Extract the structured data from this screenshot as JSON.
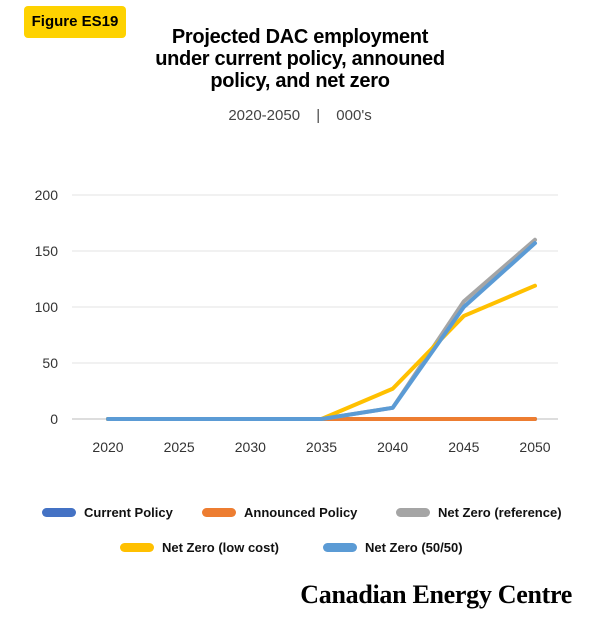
{
  "badge": "Figure ES19",
  "title_lines": [
    "Projected DAC employment",
    "under current policy, announed",
    "policy, and net zero"
  ],
  "subtitle": {
    "years": "2020-2050",
    "sep": "|",
    "units": "000's"
  },
  "footer": "Canadian Energy Centre",
  "chart_data": {
    "type": "line",
    "x": [
      "2020",
      "2025",
      "2030",
      "2035",
      "2040",
      "2045",
      "2050"
    ],
    "ylim": [
      0,
      200
    ],
    "yticks": [
      "0",
      "50",
      "100",
      "150",
      "200"
    ],
    "grid": true,
    "legend_position": "bottom",
    "series": [
      {
        "name": "Current Policy",
        "color": "#4472c4",
        "values": [
          0,
          0,
          0,
          0,
          0,
          0,
          0
        ]
      },
      {
        "name": "Announced Policy",
        "color": "#ed7d31",
        "values": [
          0,
          0,
          0,
          0,
          0,
          0,
          0
        ]
      },
      {
        "name": "Net Zero (reference)",
        "color": "#a5a5a5",
        "values": [
          0,
          0,
          0,
          0,
          10,
          105,
          160
        ]
      },
      {
        "name": "Net Zero (low cost)",
        "color": "#ffc000",
        "values": [
          0,
          0,
          0,
          0,
          27,
          92,
          119
        ]
      },
      {
        "name": "Net Zero (50/50)",
        "color": "#5b9bd5",
        "values": [
          0,
          0,
          0,
          0,
          10,
          100,
          157
        ]
      }
    ]
  }
}
